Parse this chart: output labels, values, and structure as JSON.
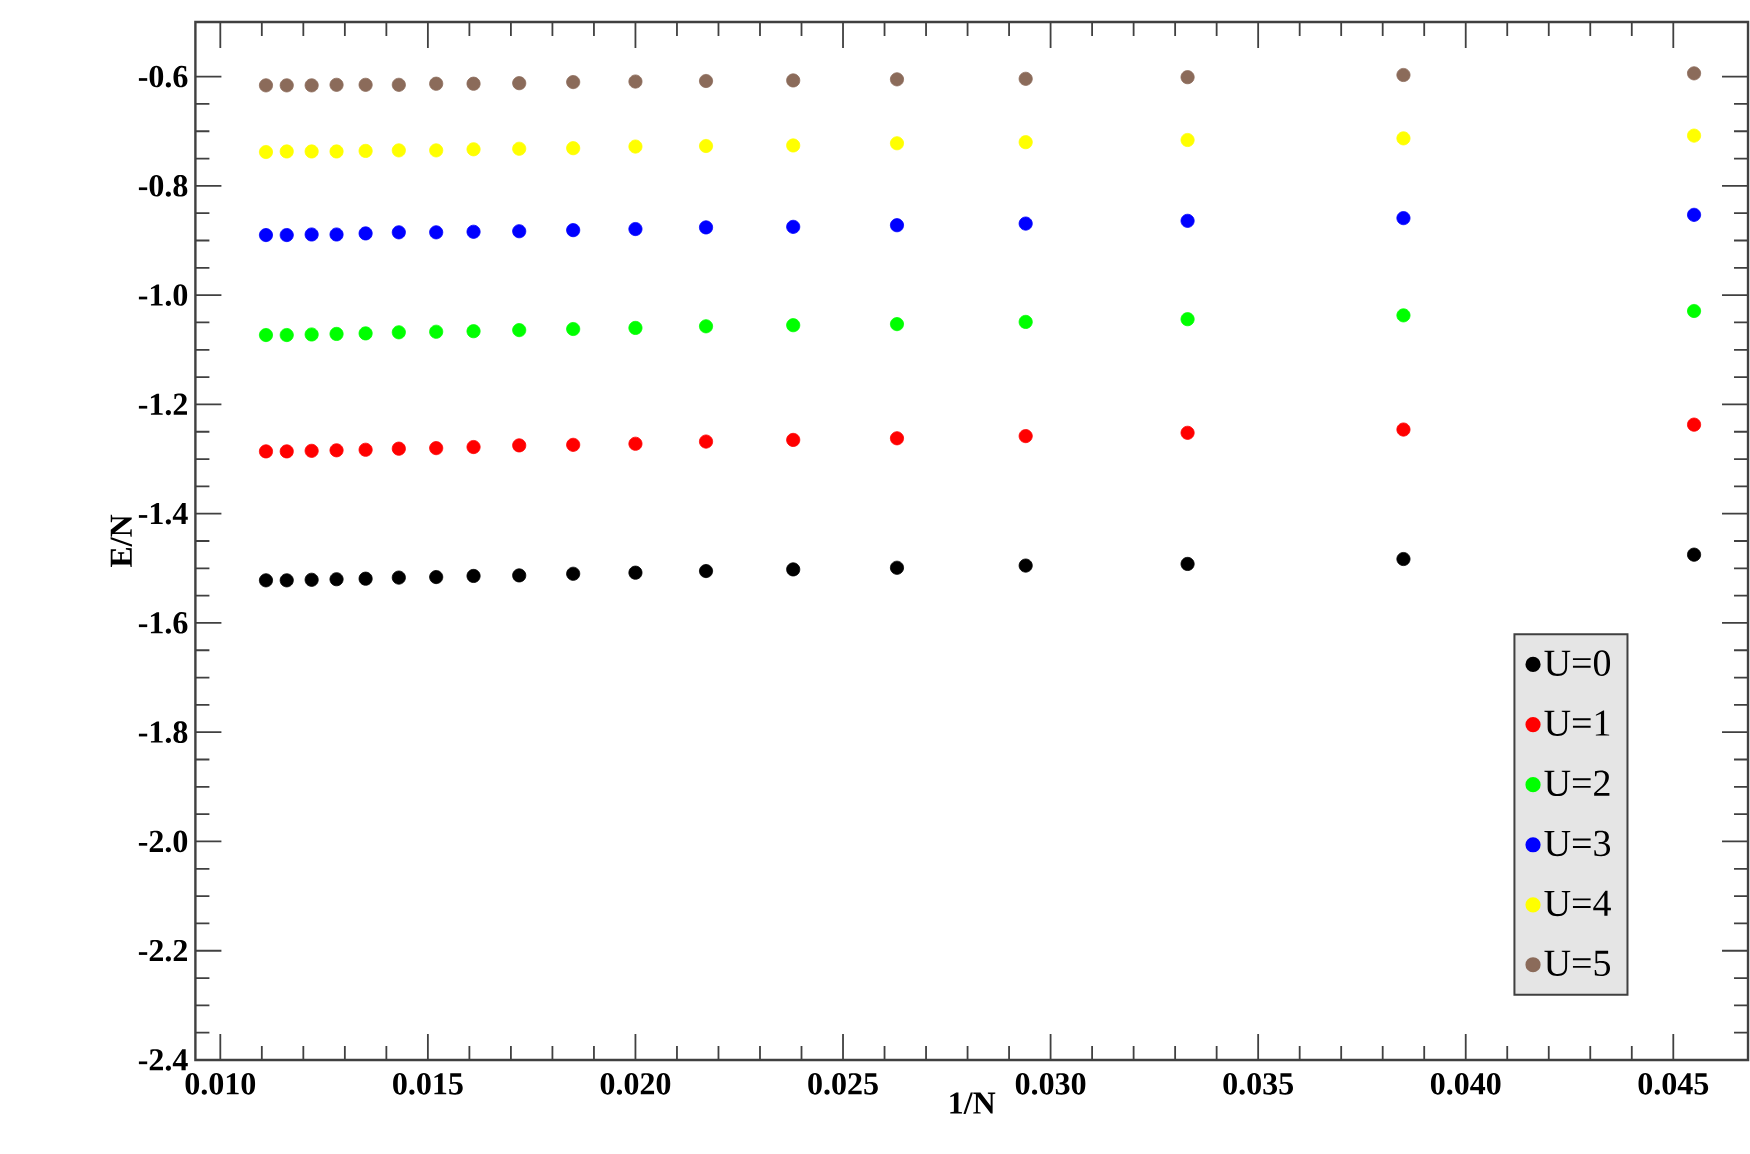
{
  "chart_data": {
    "type": "scatter",
    "xlabel": "1/N",
    "ylabel": "E/N",
    "x": [
      0.0111,
      0.0116,
      0.0122,
      0.0128,
      0.0135,
      0.0143,
      0.0152,
      0.0161,
      0.0172,
      0.0185,
      0.02,
      0.0217,
      0.0238,
      0.0263,
      0.0294,
      0.0333,
      0.0385,
      0.0455
    ],
    "series": [
      {
        "name": "U=0",
        "color": "#000000",
        "values": [
          -1.522,
          -1.522,
          -1.521,
          -1.52,
          -1.519,
          -1.517,
          -1.516,
          -1.514,
          -1.513,
          -1.51,
          -1.508,
          -1.505,
          -1.502,
          -1.499,
          -1.495,
          -1.492,
          -1.483,
          -1.475
        ]
      },
      {
        "name": "U=1",
        "color": "#ff0000",
        "values": [
          -1.286,
          -1.286,
          -1.285,
          -1.284,
          -1.283,
          -1.281,
          -1.28,
          -1.278,
          -1.275,
          -1.274,
          -1.272,
          -1.268,
          -1.265,
          -1.262,
          -1.258,
          -1.252,
          -1.246,
          -1.237
        ]
      },
      {
        "name": "U=2",
        "color": "#00ff00",
        "values": [
          -1.073,
          -1.073,
          -1.072,
          -1.071,
          -1.07,
          -1.068,
          -1.067,
          -1.066,
          -1.064,
          -1.062,
          -1.06,
          -1.057,
          -1.055,
          -1.053,
          -1.049,
          -1.044,
          -1.037,
          -1.029
        ]
      },
      {
        "name": "U=3",
        "color": "#0000ff",
        "values": [
          -0.89,
          -0.89,
          -0.889,
          -0.889,
          -0.887,
          -0.885,
          -0.885,
          -0.884,
          -0.883,
          -0.881,
          -0.879,
          -0.876,
          -0.875,
          -0.872,
          -0.869,
          -0.864,
          -0.859,
          -0.853
        ]
      },
      {
        "name": "U=4",
        "color": "#ffff00",
        "values": [
          -0.738,
          -0.737,
          -0.737,
          -0.737,
          -0.736,
          -0.735,
          -0.735,
          -0.733,
          -0.732,
          -0.731,
          -0.728,
          -0.727,
          -0.726,
          -0.722,
          -0.72,
          -0.716,
          -0.713,
          -0.708
        ]
      },
      {
        "name": "U=5",
        "color": "#8b6b5a",
        "values": [
          -0.616,
          -0.616,
          -0.616,
          -0.615,
          -0.615,
          -0.615,
          -0.613,
          -0.613,
          -0.612,
          -0.61,
          -0.609,
          -0.608,
          -0.607,
          -0.605,
          -0.604,
          -0.601,
          -0.597,
          -0.594
        ]
      }
    ],
    "xlim": [
      0.0094,
      0.0468
    ],
    "ylim": [
      -2.4,
      -0.5
    ],
    "xticks": [
      {
        "value": 0.01,
        "label": "0.010"
      },
      {
        "value": 0.015,
        "label": "0.015"
      },
      {
        "value": 0.02,
        "label": "0.020"
      },
      {
        "value": 0.025,
        "label": "0.025"
      },
      {
        "value": 0.03,
        "label": "0.030"
      },
      {
        "value": 0.035,
        "label": "0.035"
      },
      {
        "value": 0.04,
        "label": "0.040"
      },
      {
        "value": 0.045,
        "label": "0.045"
      }
    ],
    "yticks": [
      {
        "value": -2.4,
        "label": "-2.4"
      },
      {
        "value": -2.2,
        "label": "-2.2"
      },
      {
        "value": -2.0,
        "label": "-2.0"
      },
      {
        "value": -1.8,
        "label": "-1.8"
      },
      {
        "value": -1.6,
        "label": "-1.6"
      },
      {
        "value": -1.4,
        "label": "-1.4"
      },
      {
        "value": -1.2,
        "label": "-1.2"
      },
      {
        "value": -1.0,
        "label": "-1.0"
      },
      {
        "value": -0.8,
        "label": "-0.8"
      },
      {
        "value": -0.6,
        "label": "-0.6"
      }
    ],
    "grid": false,
    "legend": "bottom right",
    "marker": "circle"
  }
}
